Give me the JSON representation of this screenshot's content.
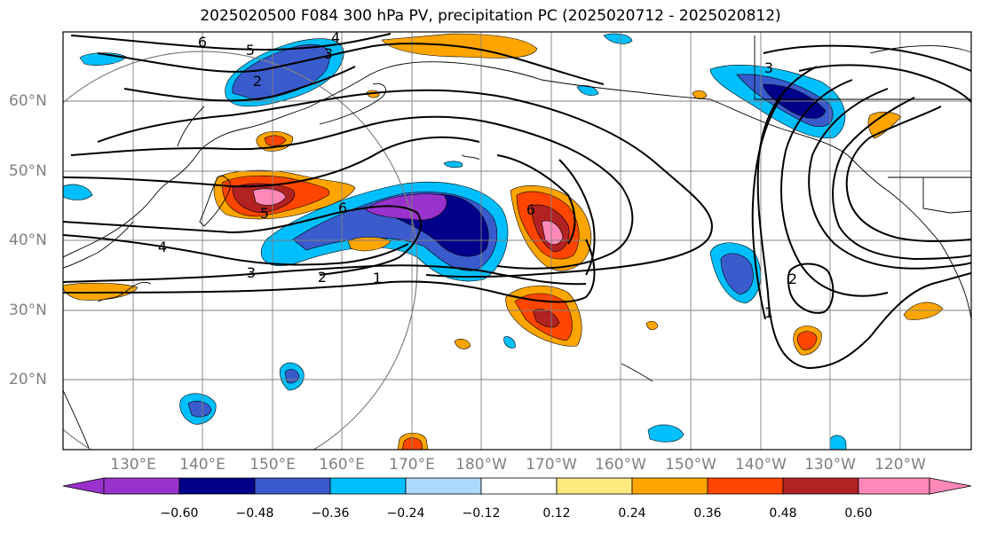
{
  "title": "2025020500 F084 300 hPa PV, precipitation PC (2025020712 - 2025020812)",
  "lat_labels": [
    "60°N",
    "50°N",
    "40°N",
    "30°N",
    "20°N"
  ],
  "lon_labels": [
    "130°E",
    "140°E",
    "150°E",
    "160°E",
    "170°E",
    "180°W",
    "170°W",
    "160°W",
    "150°W",
    "140°W",
    "130°W",
    "120°W"
  ],
  "colorbar": {
    "colors": [
      "#9932CC",
      "#00008B",
      "#3A5BCC",
      "#00BFFF",
      "#ADD8FF",
      "#FFFFFF",
      "#FFEA80",
      "#FFA500",
      "#FF4500",
      "#B22222",
      "#FF88B8"
    ],
    "tick_labels": [
      "−0.60",
      "−0.48",
      "−0.36",
      "−0.24",
      "−0.12",
      "0.12",
      "0.24",
      "0.36",
      "0.48",
      "0.60"
    ]
  },
  "contour_labels": [
    "6",
    "5",
    "4",
    "3",
    "2",
    "6",
    "5",
    "4",
    "3",
    "2",
    "1",
    "6",
    "1",
    "2",
    "3"
  ],
  "colors": {
    "pv_contour": "#000000",
    "grid": "#808080",
    "coast": "#000000"
  }
}
